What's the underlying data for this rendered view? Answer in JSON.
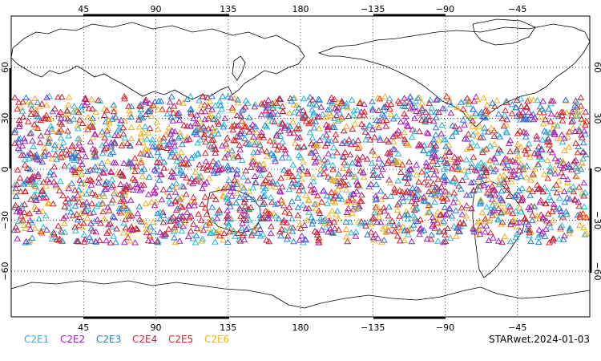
{
  "map": {
    "grid": true,
    "top_axis_labels": [
      "45",
      "90",
      "135",
      "180",
      "−135",
      "−90",
      "−45"
    ],
    "bottom_axis_labels": [
      "45",
      "90",
      "135",
      "180",
      "−135",
      "−90",
      "−45"
    ],
    "left_axis_labels": [
      "60",
      "30",
      "0",
      "−30",
      "−60"
    ],
    "right_axis_labels": [
      "60",
      "30",
      "0",
      "−30",
      "−60"
    ],
    "marker_shape": "triangle-outline",
    "observation_band": "approximately 45S to 45N"
  },
  "legend": [
    {
      "label": "C2E1",
      "color": "#29b6d8"
    },
    {
      "label": "C2E2",
      "color": "#a020c0"
    },
    {
      "label": "C2E3",
      "color": "#2080e0"
    },
    {
      "label": "C2E4",
      "color": "#c02040"
    },
    {
      "label": "C2E5",
      "color": "#e02020"
    },
    {
      "label": "C2E6",
      "color": "#f0b020"
    }
  ],
  "footer": {
    "title": "STARwet.2024-01-03"
  }
}
